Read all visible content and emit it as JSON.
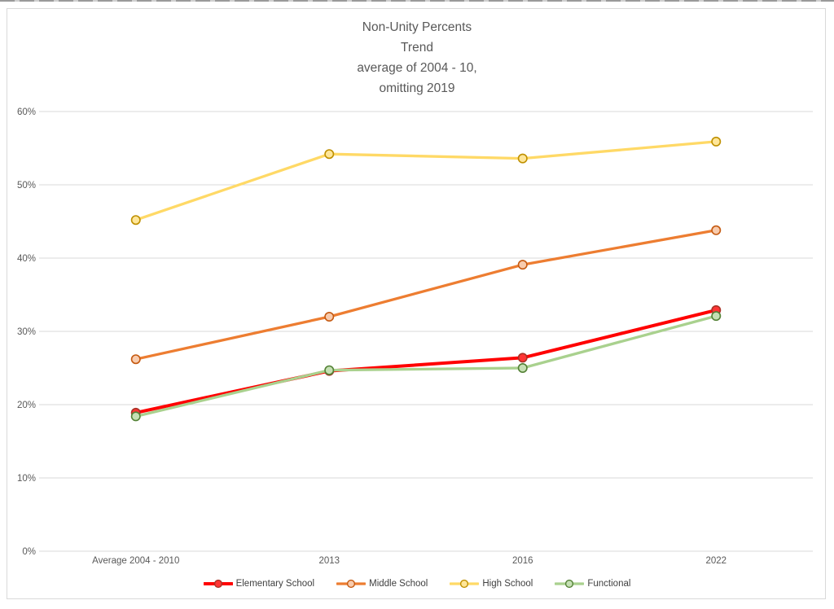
{
  "page": {
    "top_line_color": "#9A9A9A",
    "frame_border_color": "#D9D9D9",
    "background_color": "#FFFFFF"
  },
  "chart_data": {
    "type": "line",
    "title": "Non-Unity Percents\nTrend\naverage of 2004 - 10,\nomitting 2019",
    "title_color": "#595959",
    "categories": [
      "Average 2004 - 2010",
      "2013",
      "2016",
      "2022"
    ],
    "series": [
      {
        "name": "Elementary School",
        "values": [
          18.9,
          24.6,
          26.4,
          32.9
        ],
        "line_color": "#FF0000",
        "line_width": 4,
        "marker_fill": "#FF3535",
        "marker_stroke": "#A93226"
      },
      {
        "name": "Middle School",
        "values": [
          26.2,
          32.0,
          39.1,
          43.8
        ],
        "line_color": "#ED7D31",
        "line_width": 3.3,
        "marker_fill": "#F8CBAD",
        "marker_stroke": "#C55A11"
      },
      {
        "name": "High School",
        "values": [
          45.2,
          54.2,
          53.6,
          55.9
        ],
        "line_color": "#FFD966",
        "line_width": 3.3,
        "marker_fill": "#FFE699",
        "marker_stroke": "#BF9000"
      },
      {
        "name": "Functional",
        "values": [
          18.4,
          24.7,
          25.0,
          32.1
        ],
        "line_color": "#A9D18E",
        "line_width": 3.3,
        "marker_fill": "#C5E0B4",
        "marker_stroke": "#538135"
      }
    ],
    "ylim": [
      0,
      60
    ],
    "ytick_values": [
      0,
      10,
      20,
      30,
      40,
      50,
      60
    ],
    "ytick_labels": [
      "0%",
      "10%",
      "20%",
      "30%",
      "40%",
      "50%",
      "60%"
    ],
    "grid": true,
    "grid_color": "#D9D9D9",
    "axis_label_color": "#595959",
    "legend_position": "bottom",
    "legend_text_color": "#404040"
  }
}
